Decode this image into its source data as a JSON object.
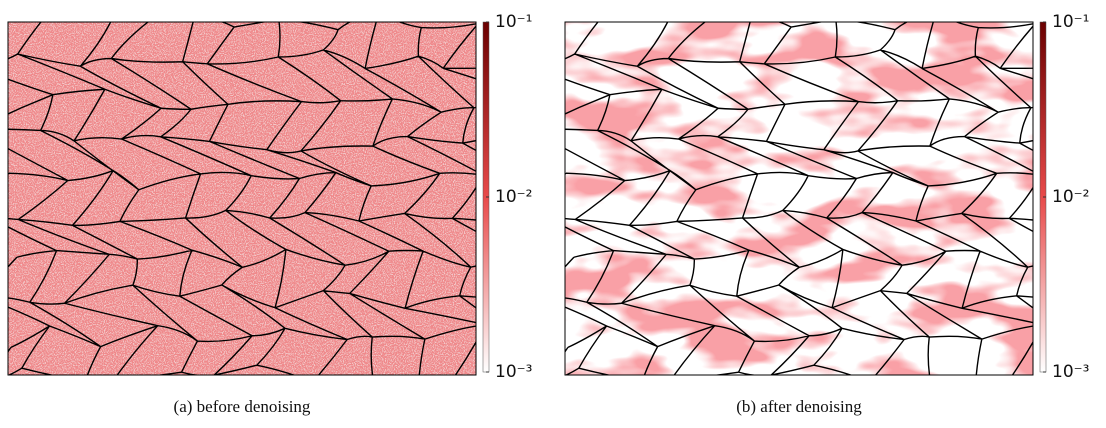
{
  "panels": [
    {
      "caption": "(a) before denoising",
      "colorbar": {
        "log": true,
        "ylim": [
          0.001,
          0.1
        ],
        "colors": [
          "#ffffff",
          "#e84a4a",
          "#6b0000"
        ],
        "yticks": [
          {
            "value": 0.1,
            "label": "10⁻¹"
          },
          {
            "value": 0.01,
            "label": "10⁻²"
          },
          {
            "value": 0.001,
            "label": "10⁻³"
          }
        ]
      }
    },
    {
      "caption": "(b) after denoising",
      "colorbar": {
        "log": true,
        "ylim": [
          0.001,
          0.1
        ],
        "colors": [
          "#ffffff",
          "#e84a4a",
          "#6b0000"
        ],
        "yticks": [
          {
            "value": 0.1,
            "label": "10⁻¹"
          },
          {
            "value": 0.01,
            "label": "10⁻²"
          },
          {
            "value": 0.001,
            "label": "10⁻³"
          }
        ]
      }
    }
  ]
}
